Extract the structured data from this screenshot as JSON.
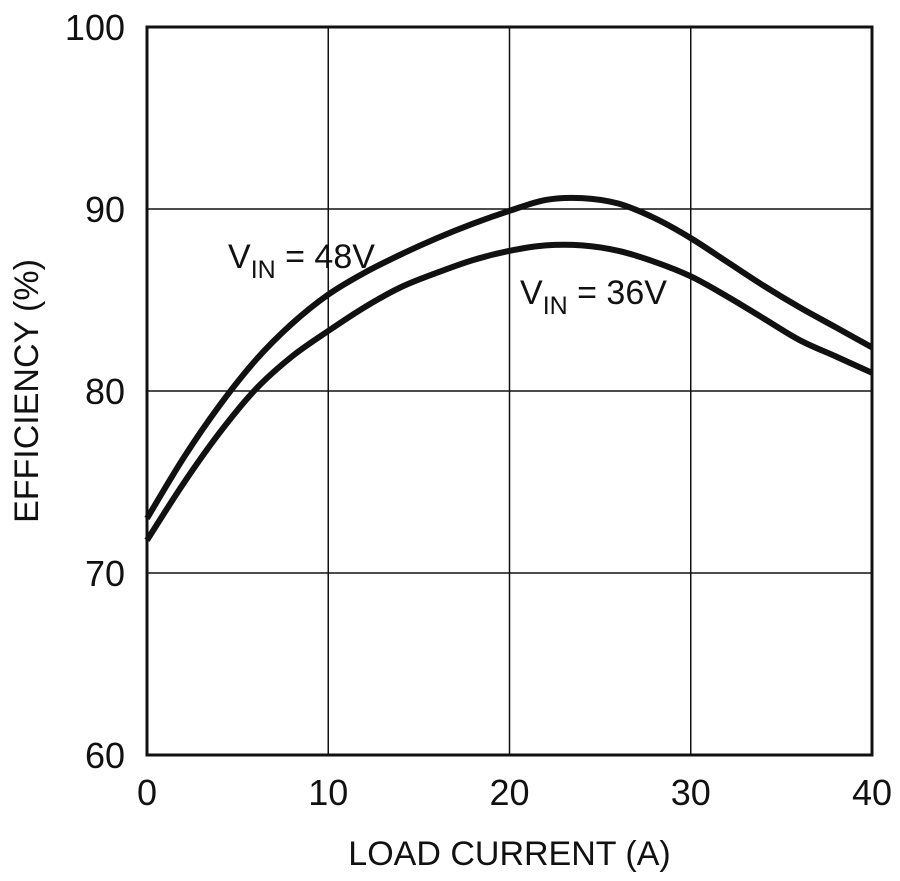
{
  "chart_data": {
    "type": "line",
    "title": "",
    "xlabel": "LOAD CURRENT (A)",
    "ylabel": "EFFICIENCY (%)",
    "xlim": [
      0,
      40
    ],
    "ylim": [
      60,
      100
    ],
    "xticks": [
      0,
      10,
      20,
      30,
      40
    ],
    "yticks": [
      60,
      70,
      80,
      90,
      100
    ],
    "grid": true,
    "series": [
      {
        "name": "VIN = 48V",
        "label_main": "V",
        "label_sub": "IN",
        "label_rest": " = 48V",
        "color": "#111111",
        "x": [
          0,
          2,
          4,
          6,
          8,
          10,
          12,
          14,
          16,
          18,
          20,
          22,
          24,
          26,
          28,
          30,
          32,
          34,
          36,
          38,
          40
        ],
        "y": [
          73.0,
          76.3,
          79.2,
          81.7,
          83.7,
          85.3,
          86.5,
          87.5,
          88.4,
          89.2,
          89.9,
          90.5,
          90.6,
          90.3,
          89.5,
          88.4,
          87.1,
          85.8,
          84.6,
          83.5,
          82.4
        ]
      },
      {
        "name": "VIN = 36V",
        "label_main": "V",
        "label_sub": "IN",
        "label_rest": " = 36V",
        "color": "#111111",
        "x": [
          0,
          2,
          4,
          6,
          8,
          10,
          12,
          14,
          16,
          18,
          20,
          22,
          24,
          26,
          28,
          30,
          32,
          34,
          36,
          38,
          40
        ],
        "y": [
          71.8,
          74.9,
          77.7,
          80.1,
          81.9,
          83.3,
          84.6,
          85.7,
          86.5,
          87.2,
          87.7,
          88.0,
          88.0,
          87.7,
          87.1,
          86.3,
          85.2,
          84.0,
          82.8,
          81.9,
          81.0
        ]
      }
    ]
  }
}
